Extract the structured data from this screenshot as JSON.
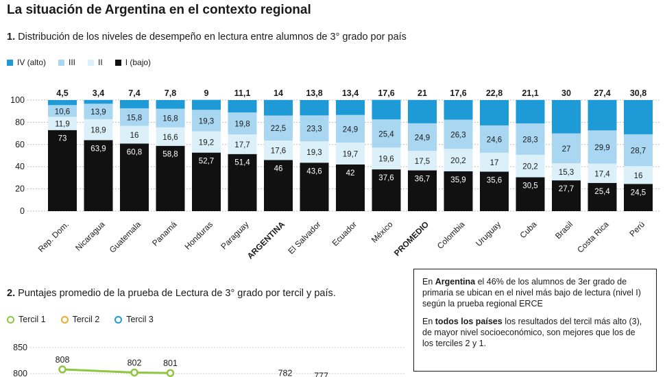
{
  "title": "La situación de Argentina en el contexto regional",
  "section1": {
    "num": "1.",
    "title": "Distribución de los niveles de desempeño en lectura entre alumnos de 3° grado por país"
  },
  "section2": {
    "num": "2.",
    "title": "Puntajes promedio de la prueba de Lectura de 3° grado por tercil y país."
  },
  "colors": {
    "IV": "#1e9bd7",
    "III": "#a9d6f0",
    "II": "#dcf0fa",
    "I": "#111111",
    "t1": "#8dc63f",
    "t2": "#f0a830",
    "t3": "#1e9bd7"
  },
  "legend1": [
    {
      "key": "IV",
      "label": "IV (alto)"
    },
    {
      "key": "III",
      "label": "III"
    },
    {
      "key": "II",
      "label": "II"
    },
    {
      "key": "I",
      "label": "I (bajo)"
    }
  ],
  "legend2": [
    {
      "key": "t1",
      "label": "Tercil 1"
    },
    {
      "key": "t2",
      "label": "Tercil 2"
    },
    {
      "key": "t3",
      "label": "Tercil 3"
    }
  ],
  "chart_data": [
    {
      "type": "bar",
      "stacked": true,
      "ylim": [
        0,
        100
      ],
      "yticks": [
        0,
        20,
        40,
        60,
        80,
        100
      ],
      "categories": [
        "Rep. Dom.",
        "Nicaragua",
        "Guatemala",
        "Panamá",
        "Honduras",
        "Paraguay",
        "ARGENTINA",
        "El Salvador",
        "Ecuador",
        "México",
        "PROMEDIO",
        "Colombia",
        "Uruguay",
        "Cuba",
        "Brasil",
        "Costa Rica",
        "Perú"
      ],
      "bold_categories": [
        "ARGENTINA",
        "PROMEDIO"
      ],
      "series": [
        {
          "name": "I (bajo)",
          "key": "I",
          "values": [
            73,
            63.9,
            60.8,
            58.8,
            52.7,
            51.4,
            46,
            43.6,
            42,
            37.6,
            36.7,
            35.9,
            35.6,
            30.5,
            27.7,
            25.4,
            24.5
          ]
        },
        {
          "name": "II",
          "key": "II",
          "values": [
            11.9,
            18.9,
            16,
            16.6,
            19.2,
            17.7,
            17.6,
            19.3,
            19.7,
            19.6,
            17.5,
            20.2,
            17,
            20.2,
            15.3,
            17.4,
            16
          ]
        },
        {
          "name": "III",
          "key": "III",
          "values": [
            10.6,
            13.9,
            15.8,
            16.8,
            19.3,
            19.8,
            22.5,
            23.3,
            24.9,
            25.4,
            24.9,
            26.3,
            24.6,
            28.3,
            27,
            29.9,
            28.7
          ]
        },
        {
          "name": "IV (alto)",
          "key": "IV",
          "values": [
            4.5,
            3.4,
            7.4,
            7.8,
            9,
            11.1,
            14,
            13.8,
            13.4,
            17.6,
            21,
            17.6,
            22.8,
            21.1,
            30,
            27.4,
            30.8
          ]
        }
      ],
      "top_labels": [
        "4,5",
        "3,4",
        "7,4",
        "7,8",
        "9",
        "11,1",
        "14",
        "13,8",
        "13,4",
        "17,6",
        "21",
        "17,6",
        "22,8",
        "21,1",
        "30",
        "27,4",
        "30,8"
      ],
      "segment_labels": {
        "I": [
          "73",
          "63,9",
          "60,8",
          "58,8",
          "52,7",
          "51,4",
          "46",
          "43,6",
          "42",
          "37,6",
          "36,7",
          "35,9",
          "35,6",
          "30,5",
          "27,7",
          "25,4",
          "24,5"
        ],
        "II": [
          "11,9",
          "18,9",
          "16",
          "16,6",
          "19,2",
          "17,7",
          "17,6",
          "19,3",
          "19,7",
          "19,6",
          "17,5",
          "20,2",
          "17",
          "20,2",
          "15,3",
          "17,4",
          "16"
        ],
        "III": [
          "10,6",
          "13,9",
          "15,8",
          "16,8",
          "19,3",
          "19,8",
          "22,5",
          "23,3",
          "24,9",
          "25,4",
          "24,9",
          "26,3",
          "24,6",
          "28,3",
          "27",
          "29,9",
          "28,7"
        ]
      }
    },
    {
      "type": "line",
      "yticks": [
        800,
        850
      ],
      "ytick_labels": [
        "800",
        "850"
      ],
      "series": [
        {
          "name": "Tercil 1",
          "key": "t1",
          "points": [
            {
              "index": 0,
              "value": 808,
              "label": "808"
            },
            {
              "index": 2,
              "value": 802,
              "label": "802"
            },
            {
              "index": 3,
              "value": 801,
              "label": "801"
            }
          ]
        }
      ],
      "extra_labels": [
        {
          "index": 6,
          "value": 782,
          "label": "782"
        },
        {
          "index": 7,
          "value": 777,
          "label": "777"
        }
      ]
    }
  ],
  "infobox": {
    "p1": [
      {
        "text": "En ",
        "bold": false
      },
      {
        "text": "Argentina",
        "bold": true
      },
      {
        "text": " el 46% de los alumnos de 3er grado de primaria se ubican en el nivel más bajo de lectura (nivel I) según la prueba regional ERCE",
        "bold": false
      }
    ],
    "p2": [
      {
        "text": "En ",
        "bold": false
      },
      {
        "text": "todos los países",
        "bold": true
      },
      {
        "text": " los resultados del tercil más alto (3), de mayor nivel socioeconómico, son mejores que los de los terciles 2 y 1.",
        "bold": false
      }
    ]
  }
}
